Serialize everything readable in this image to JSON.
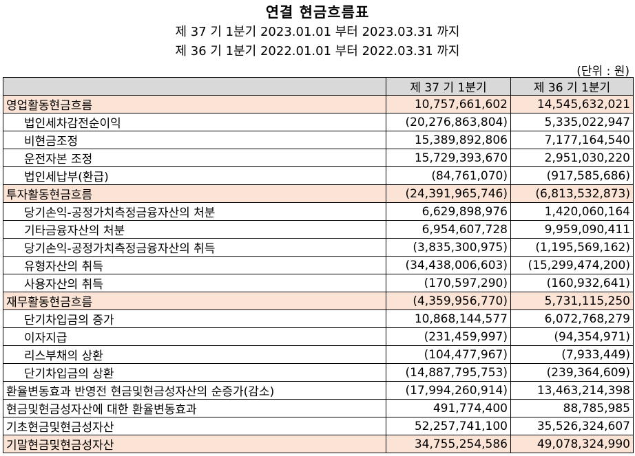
{
  "title": "연결 현금흐름표",
  "period_current": "제 37 기 1분기 2023.01.01 부터 2023.03.31 까지",
  "period_prior": "제 36 기 1분기 2022.01.01 부터 2022.03.31 까지",
  "unit": "(단위 : 원)",
  "columns": [
    "",
    "제 37 기 1분기",
    "제 36 기 1분기"
  ],
  "rows": [
    {
      "label": "영업활동현금흐름",
      "cur": "10,757,661,602",
      "prev": "14,545,632,021",
      "type": "section"
    },
    {
      "label": "법인세차감전순이익",
      "cur": "(20,276,863,804)",
      "prev": "5,335,022,947",
      "type": "sub"
    },
    {
      "label": "비현금조정",
      "cur": "15,389,892,806",
      "prev": "7,177,164,540",
      "type": "sub"
    },
    {
      "label": "운전자본 조정",
      "cur": "15,729,393,670",
      "prev": "2,951,030,220",
      "type": "sub"
    },
    {
      "label": "법인세납부(환급)",
      "cur": "(84,761,070)",
      "prev": "(917,585,686)",
      "type": "sub"
    },
    {
      "label": "투자활동현금흐름",
      "cur": "(24,391,965,746)",
      "prev": "(6,813,532,873)",
      "type": "section"
    },
    {
      "label": "당기손익-공정가치측정금융자산의 처분",
      "cur": "6,629,898,976",
      "prev": "1,420,060,164",
      "type": "sub"
    },
    {
      "label": "기타금융자산의 처분",
      "cur": "6,954,607,728",
      "prev": "9,959,090,411",
      "type": "sub"
    },
    {
      "label": "당기손익-공정가치측정금융자산의 취득",
      "cur": "(3,835,300,975)",
      "prev": "(1,195,569,162)",
      "type": "sub"
    },
    {
      "label": "유형자산의 취득",
      "cur": "(34,438,006,603)",
      "prev": "(15,299,474,200)",
      "type": "sub"
    },
    {
      "label": "사용자산의 취득",
      "cur": "(170,597,290)",
      "prev": "(160,932,641)",
      "type": "sub"
    },
    {
      "label": "재무활동현금흐름",
      "cur": "(4,359,956,770)",
      "prev": "5,731,115,250",
      "type": "section"
    },
    {
      "label": "단기차입금의 증가",
      "cur": "10,868,144,577",
      "prev": "6,072,768,279",
      "type": "sub"
    },
    {
      "label": "이자지급",
      "cur": "(231,459,997)",
      "prev": "(94,354,971)",
      "type": "sub"
    },
    {
      "label": "리스부채의 상환",
      "cur": "(104,477,967)",
      "prev": "(7,933,449)",
      "type": "sub"
    },
    {
      "label": "단기차입금의 상환",
      "cur": "(14,887,795,753)",
      "prev": "(239,364,609)",
      "type": "sub"
    },
    {
      "label": "환율변동효과 반영전 현금및현금성자산의 순증가(감소)",
      "cur": "(17,994,260,914)",
      "prev": "13,463,214,398",
      "type": "plain"
    },
    {
      "label": "현금및현금성자산에 대한 환율변동효과",
      "cur": "491,774,400",
      "prev": "88,785,985",
      "type": "plain"
    },
    {
      "label": "기초현금및현금성자산",
      "cur": "52,257,741,100",
      "prev": "35,526,324,607",
      "type": "plain"
    },
    {
      "label": "기말현금및현금성자산",
      "cur": "34,755,254,586",
      "prev": "49,078,324,990",
      "type": "section"
    }
  ]
}
